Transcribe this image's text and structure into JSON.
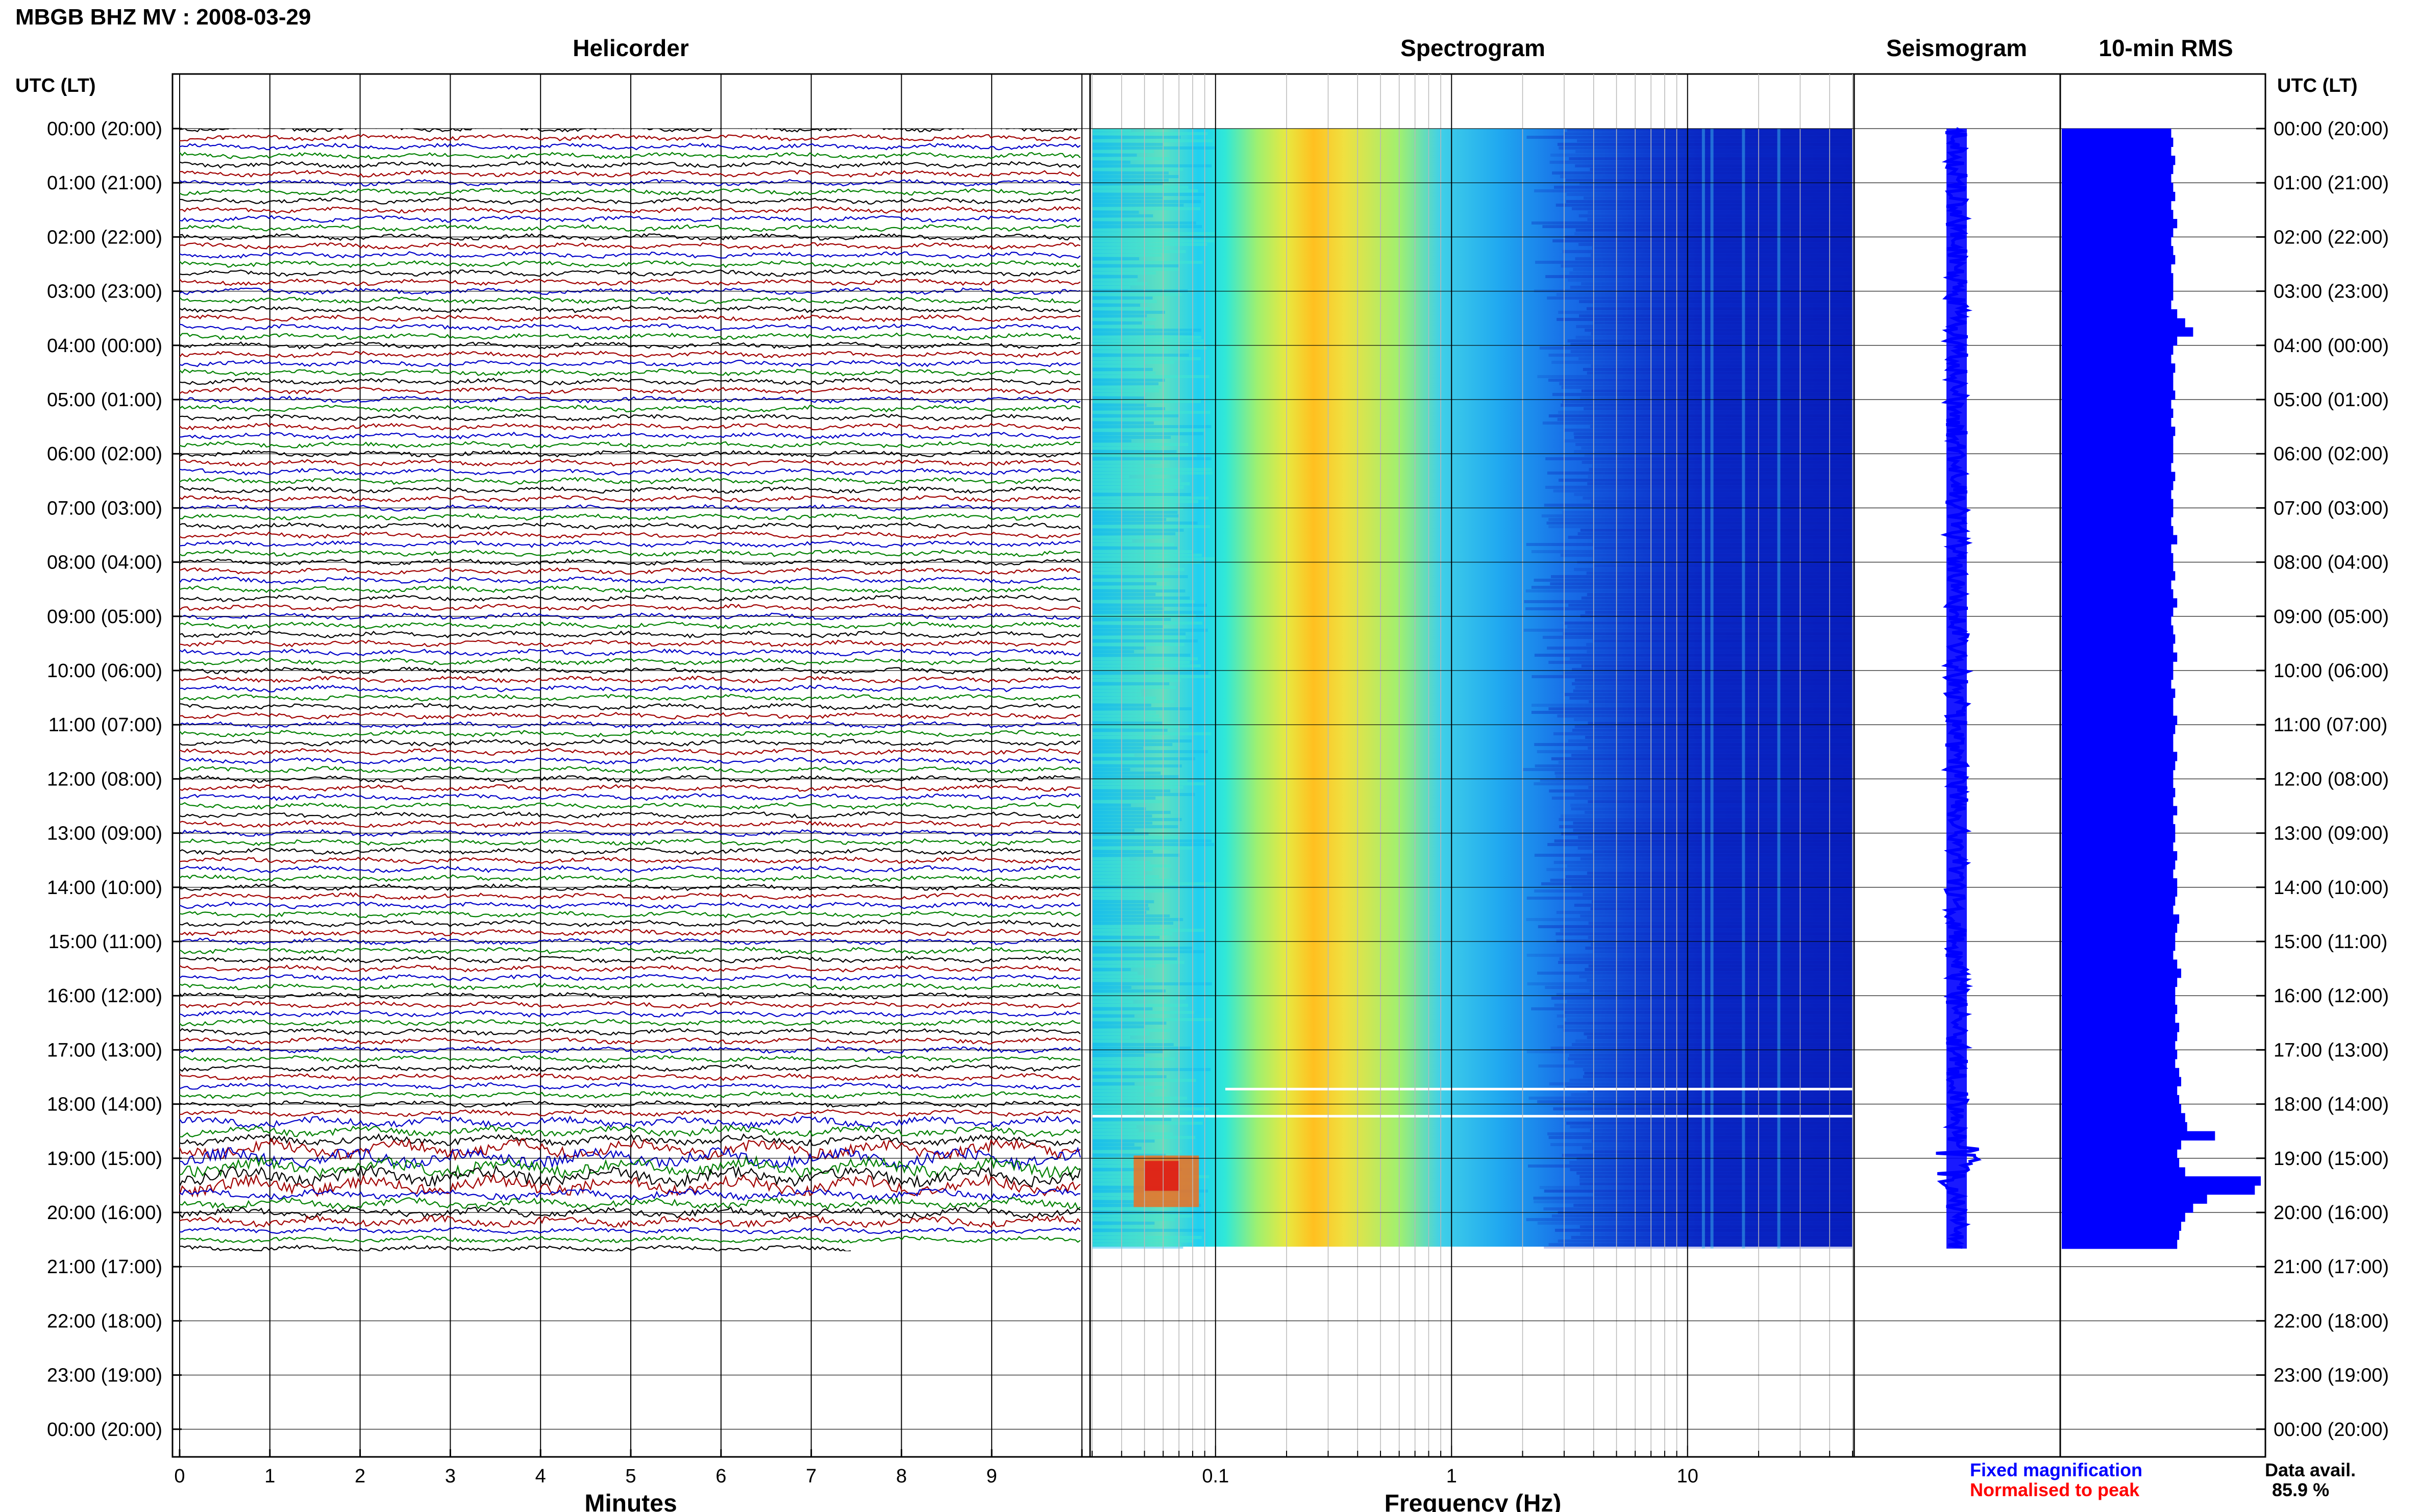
{
  "header": {
    "station_title": "MBGB BHZ MV : 2008-03-29"
  },
  "panels": {
    "helicorder": "Helicorder",
    "spectrogram": "Spectrogram",
    "seismogram": "Seismogram",
    "rms": "10-min RMS"
  },
  "time_axis": {
    "label_left": "UTC (LT)",
    "label_right": "UTC (LT)",
    "ticks": [
      "00:00 (20:00)",
      "01:00 (21:00)",
      "02:00 (22:00)",
      "03:00 (23:00)",
      "04:00 (00:00)",
      "05:00 (01:00)",
      "06:00 (02:00)",
      "07:00 (03:00)",
      "08:00 (04:00)",
      "09:00 (05:00)",
      "10:00 (06:00)",
      "11:00 (07:00)",
      "12:00 (08:00)",
      "13:00 (09:00)",
      "14:00 (10:00)",
      "15:00 (11:00)",
      "16:00 (12:00)",
      "17:00 (13:00)",
      "18:00 (14:00)",
      "19:00 (15:00)",
      "20:00 (16:00)",
      "21:00 (17:00)",
      "22:00 (18:00)",
      "23:00 (19:00)",
      "00:00 (20:00)"
    ]
  },
  "minutes_axis": {
    "label": "Minutes",
    "ticks": [
      "0",
      "1",
      "2",
      "3",
      "4",
      "5",
      "6",
      "7",
      "8",
      "9"
    ]
  },
  "frequency_axis": {
    "label": "Frequency (Hz)",
    "ticks": [
      "0.1",
      "1",
      "10"
    ]
  },
  "legend": {
    "fixed": "Fixed magnification",
    "normalised": "Normalised to peak",
    "fixed_color": "#0000ff",
    "normalised_color": "#ff0000"
  },
  "availability": {
    "label": "Data avail.",
    "value": "85.9 %"
  },
  "colors": {
    "trace_cycle": [
      "#000000",
      "#a00000",
      "#0000c8",
      "#008000"
    ],
    "rms_bar": "#0000ff",
    "seismogram": "#0000ff"
  },
  "chart_data": {
    "type": "heatmap",
    "station": "MBGB BHZ MV",
    "date": "2008-03-29",
    "hours_shown": 24,
    "data_end_utc": "20:40",
    "helicorder_traces_per_hour": 6,
    "frequency_range_hz": [
      0.03,
      50
    ],
    "frequency_scale": "log",
    "spectral_peak_band_hz": [
      0.2,
      0.3
    ],
    "rms_10min_relative": [
      0.55,
      0.56,
      0.55,
      0.57,
      0.56,
      0.55,
      0.56,
      0.57,
      0.55,
      0.56,
      0.58,
      0.56,
      0.55,
      0.56,
      0.57,
      0.55,
      0.56,
      0.56,
      0.56,
      0.55,
      0.58,
      0.62,
      0.66,
      0.58,
      0.56,
      0.55,
      0.57,
      0.56,
      0.56,
      0.57,
      0.55,
      0.56,
      0.55,
      0.57,
      0.56,
      0.56,
      0.56,
      0.55,
      0.57,
      0.56,
      0.55,
      0.56,
      0.56,
      0.55,
      0.56,
      0.58,
      0.55,
      0.56,
      0.56,
      0.57,
      0.55,
      0.56,
      0.58,
      0.56,
      0.55,
      0.56,
      0.57,
      0.56,
      0.58,
      0.56,
      0.56,
      0.55,
      0.57,
      0.56,
      0.56,
      0.58,
      0.57,
      0.56,
      0.56,
      0.58,
      0.57,
      0.56,
      0.56,
      0.57,
      0.56,
      0.58,
      0.56,
      0.57,
      0.57,
      0.56,
      0.58,
      0.57,
      0.56,
      0.58,
      0.58,
      0.57,
      0.56,
      0.59,
      0.58,
      0.57,
      0.57,
      0.56,
      0.58,
      0.6,
      0.58,
      0.57,
      0.57,
      0.58,
      0.57,
      0.59,
      0.58,
      0.57,
      0.58,
      0.57,
      0.59,
      0.6,
      0.58,
      0.59,
      0.6,
      0.62,
      0.63,
      0.77,
      0.6,
      0.58,
      0.59,
      0.62,
      1.0,
      0.97,
      0.73,
      0.66,
      0.62,
      0.6,
      0.59,
      0.58
    ]
  }
}
